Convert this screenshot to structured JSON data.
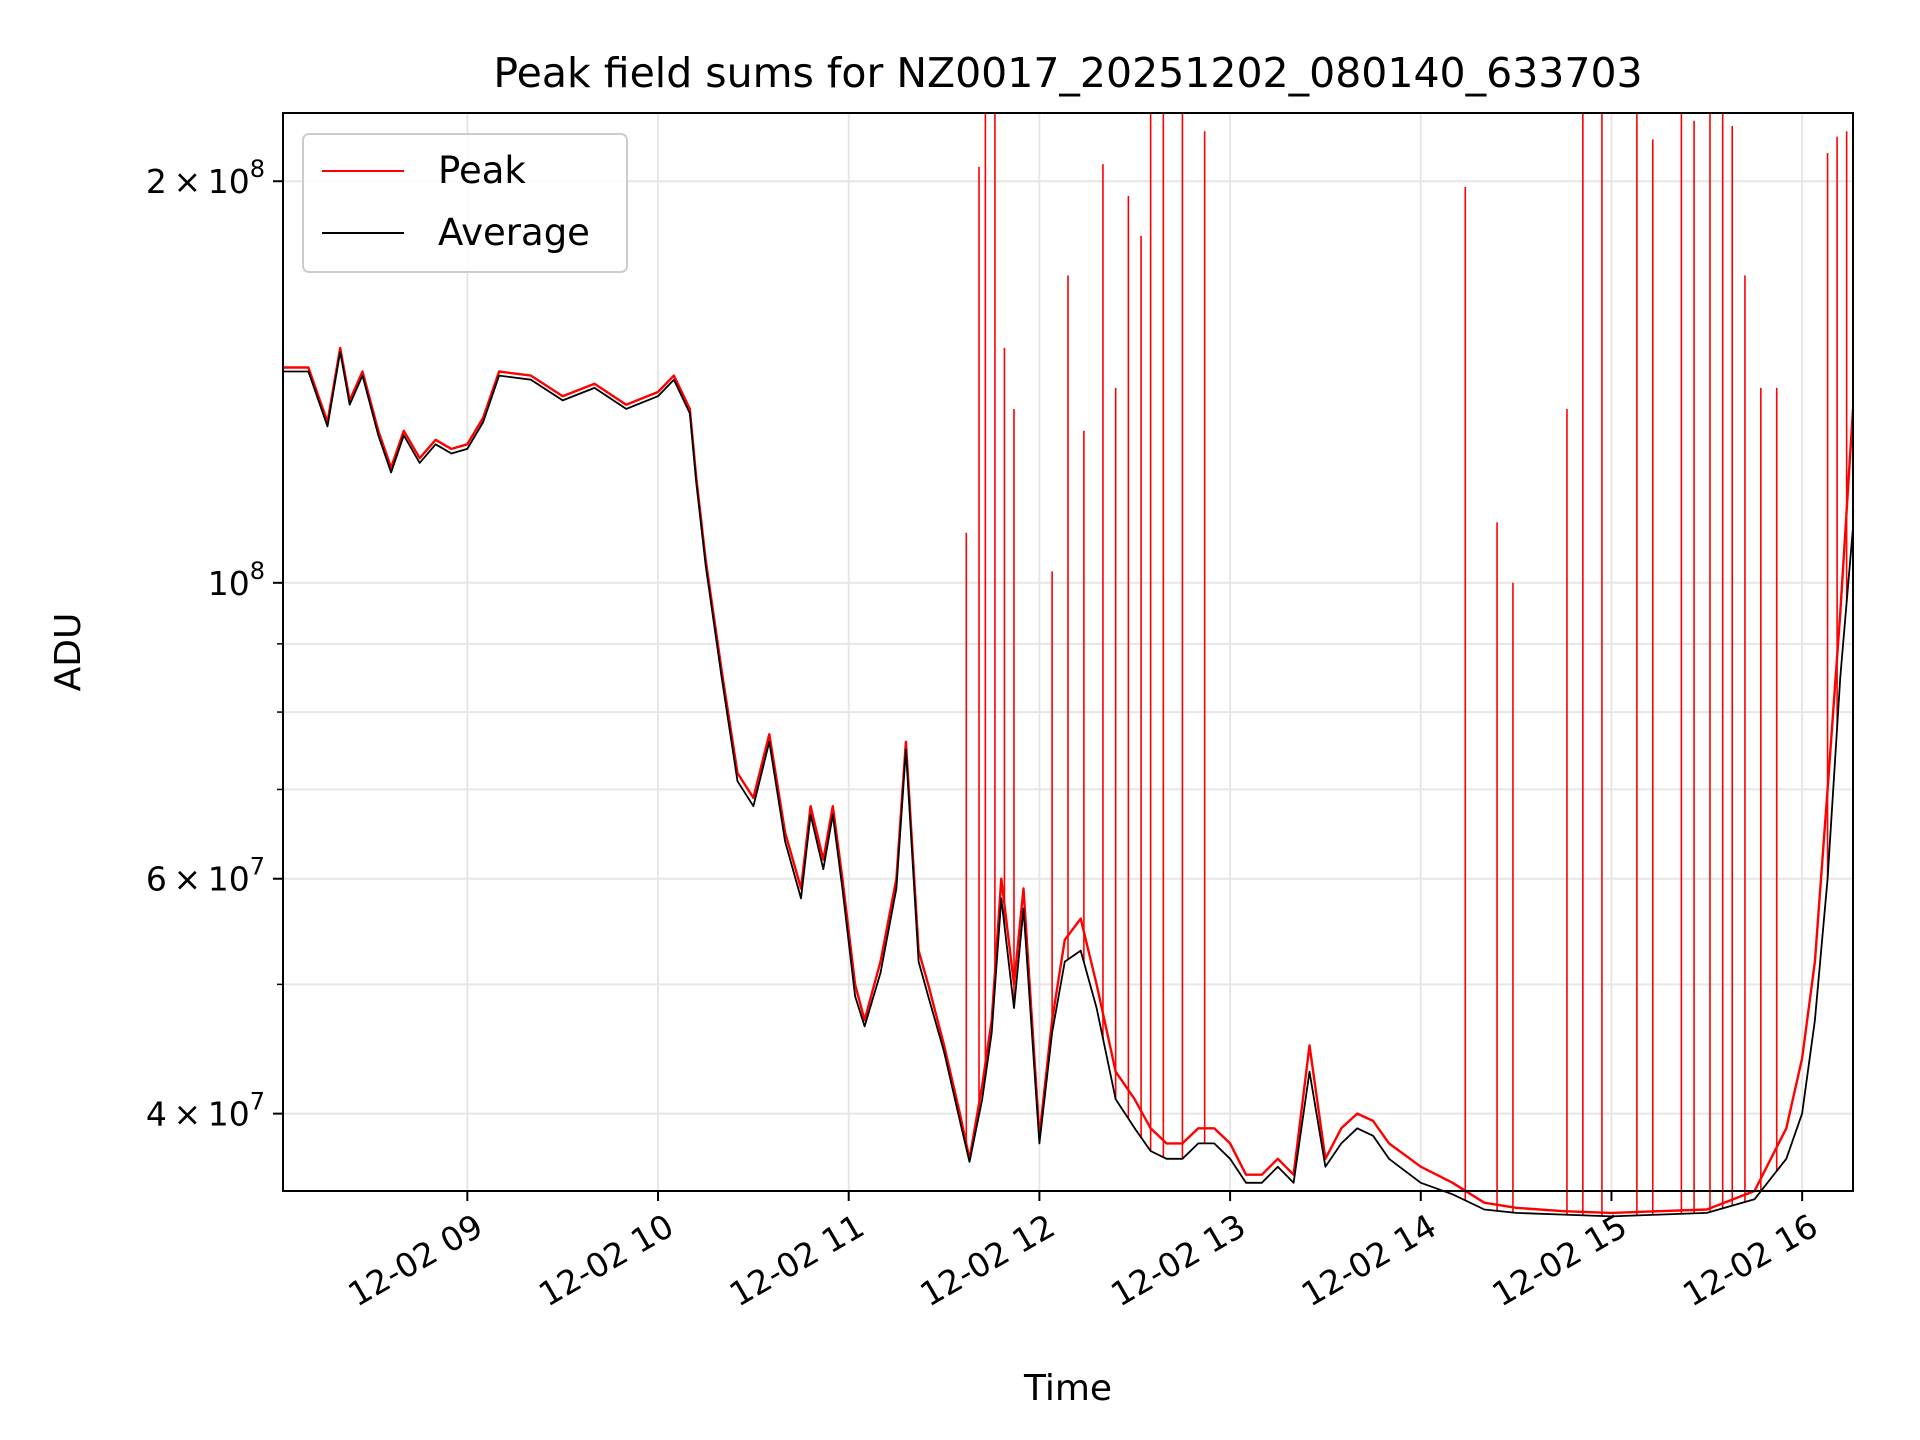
{
  "chart_data": {
    "type": "line",
    "title": "Peak field sums for NZ0017_20251202_080140_633703",
    "xlabel": "Time",
    "ylabel": "ADU",
    "yscale": "log",
    "grid": true,
    "legend_position": "top-left",
    "xlim": [
      "12-02 08:02",
      "12-02 16:16"
    ],
    "ylim": [
      35000000,
      225000000
    ],
    "x_ticks": [
      "12-02 09",
      "12-02 10",
      "12-02 11",
      "12-02 12",
      "12-02 13",
      "12-02 14",
      "12-02 15",
      "12-02 16"
    ],
    "y_ticks": [
      {
        "value": 40000000,
        "mantissa": "4",
        "exp": "7"
      },
      {
        "value": 60000000,
        "mantissa": "6",
        "exp": "7"
      },
      {
        "value": 100000000,
        "mantissa": "",
        "exp": "8"
      },
      {
        "value": 200000000,
        "mantissa": "2",
        "exp": "8"
      }
    ],
    "series": [
      {
        "name": "Peak",
        "color": "#ff0000",
        "x": [
          "12-02 08:02",
          "12-02 08:10",
          "12-02 08:16",
          "12-02 08:20",
          "12-02 08:23",
          "12-02 08:27",
          "12-02 08:32",
          "12-02 08:36",
          "12-02 08:40",
          "12-02 08:45",
          "12-02 08:50",
          "12-02 08:55",
          "12-02 09:00",
          "12-02 09:05",
          "12-02 09:10",
          "12-02 09:20",
          "12-02 09:30",
          "12-02 09:40",
          "12-02 09:50",
          "12-02 10:00",
          "12-02 10:05",
          "12-02 10:10",
          "12-02 10:12",
          "12-02 10:15",
          "12-02 10:20",
          "12-02 10:25",
          "12-02 10:30",
          "12-02 10:35",
          "12-02 10:40",
          "12-02 10:45",
          "12-02 10:48",
          "12-02 10:52",
          "12-02 10:55",
          "12-02 10:58",
          "12-02 11:02",
          "12-02 11:05",
          "12-02 11:10",
          "12-02 11:15",
          "12-02 11:18",
          "12-02 11:22",
          "12-02 11:25",
          "12-02 11:30",
          "12-02 11:35",
          "12-02 11:38",
          "12-02 11:42",
          "12-02 11:45",
          "12-02 11:48",
          "12-02 11:52",
          "12-02 11:55",
          "12-02 12:00",
          "12-02 12:04",
          "12-02 12:08",
          "12-02 12:13",
          "12-02 12:18",
          "12-02 12:24",
          "12-02 12:30",
          "12-02 12:35",
          "12-02 12:40",
          "12-02 12:45",
          "12-02 12:50",
          "12-02 12:55",
          "12-02 13:00",
          "12-02 13:05",
          "12-02 13:10",
          "12-02 13:15",
          "12-02 13:20",
          "12-02 13:25",
          "12-02 13:30",
          "12-02 13:35",
          "12-02 13:40",
          "12-02 13:45",
          "12-02 13:50",
          "12-02 14:00",
          "12-02 14:10",
          "12-02 14:20",
          "12-02 14:30",
          "12-02 14:45",
          "12-02 15:00",
          "12-02 15:15",
          "12-02 15:30",
          "12-02 15:45",
          "12-02 15:55",
          "12-02 16:00",
          "12-02 16:04",
          "12-02 16:08",
          "12-02 16:12",
          "12-02 16:16"
        ],
        "y": [
          145000000,
          145000000,
          132000000,
          150000000,
          137000000,
          144000000,
          130000000,
          122000000,
          130000000,
          124000000,
          128000000,
          126000000,
          127000000,
          133000000,
          144000000,
          143000000,
          138000000,
          141000000,
          136000000,
          139000000,
          143000000,
          135000000,
          120000000,
          104000000,
          86000000,
          72000000,
          69000000,
          77000000,
          65000000,
          59000000,
          68000000,
          62000000,
          68000000,
          60000000,
          50000000,
          47000000,
          52000000,
          60000000,
          76000000,
          53000000,
          50000000,
          45000000,
          40000000,
          37000000,
          42000000,
          47000000,
          60000000,
          50000000,
          59000000,
          38500000,
          47000000,
          54000000,
          56000000,
          50000000,
          43000000,
          41000000,
          39000000,
          38000000,
          38000000,
          39000000,
          39000000,
          38000000,
          36000000,
          36000000,
          37000000,
          36000000,
          45000000,
          37000000,
          39000000,
          40000000,
          39500000,
          38000000,
          36500000,
          35500000,
          34300000,
          34000000,
          33800000,
          33700000,
          33800000,
          33900000,
          35000000,
          39000000,
          44000000,
          52000000,
          70000000,
          95000000,
          135000000
        ],
        "spikes": [
          {
            "x": "12-02 11:37",
            "y": 109000000
          },
          {
            "x": "12-02 11:41",
            "y": 205000000
          },
          {
            "x": "12-02 11:43",
            "y": 225000000
          },
          {
            "x": "12-02 11:46",
            "y": 225000000
          },
          {
            "x": "12-02 11:49",
            "y": 150000000
          },
          {
            "x": "12-02 11:52",
            "y": 135000000
          },
          {
            "x": "12-02 12:04",
            "y": 102000000
          },
          {
            "x": "12-02 12:09",
            "y": 170000000
          },
          {
            "x": "12-02 12:14",
            "y": 130000000
          },
          {
            "x": "12-02 12:20",
            "y": 206000000
          },
          {
            "x": "12-02 12:24",
            "y": 140000000
          },
          {
            "x": "12-02 12:28",
            "y": 195000000
          },
          {
            "x": "12-02 12:32",
            "y": 182000000
          },
          {
            "x": "12-02 12:35",
            "y": 225000000
          },
          {
            "x": "12-02 12:39",
            "y": 225000000
          },
          {
            "x": "12-02 12:45",
            "y": 225000000
          },
          {
            "x": "12-02 12:52",
            "y": 218000000
          },
          {
            "x": "12-02 14:14",
            "y": 198000000
          },
          {
            "x": "12-02 14:24",
            "y": 111000000
          },
          {
            "x": "12-02 14:29",
            "y": 100000000
          },
          {
            "x": "12-02 14:46",
            "y": 135000000
          },
          {
            "x": "12-02 14:51",
            "y": 225000000
          },
          {
            "x": "12-02 14:57",
            "y": 225000000
          },
          {
            "x": "12-02 15:08",
            "y": 225000000
          },
          {
            "x": "12-02 15:13",
            "y": 215000000
          },
          {
            "x": "12-02 15:22",
            "y": 225000000
          },
          {
            "x": "12-02 15:26",
            "y": 222000000
          },
          {
            "x": "12-02 15:31",
            "y": 225000000
          },
          {
            "x": "12-02 15:35",
            "y": 225000000
          },
          {
            "x": "12-02 15:38",
            "y": 220000000
          },
          {
            "x": "12-02 15:42",
            "y": 170000000
          },
          {
            "x": "12-02 15:47",
            "y": 140000000
          },
          {
            "x": "12-02 15:52",
            "y": 140000000
          },
          {
            "x": "12-02 16:08",
            "y": 210000000
          },
          {
            "x": "12-02 16:11",
            "y": 216000000
          },
          {
            "x": "12-02 16:14",
            "y": 218000000
          }
        ]
      },
      {
        "name": "Average",
        "color": "#000000",
        "x": [
          "12-02 08:02",
          "12-02 08:10",
          "12-02 08:16",
          "12-02 08:20",
          "12-02 08:23",
          "12-02 08:27",
          "12-02 08:32",
          "12-02 08:36",
          "12-02 08:40",
          "12-02 08:45",
          "12-02 08:50",
          "12-02 08:55",
          "12-02 09:00",
          "12-02 09:05",
          "12-02 09:10",
          "12-02 09:20",
          "12-02 09:30",
          "12-02 09:40",
          "12-02 09:50",
          "12-02 10:00",
          "12-02 10:05",
          "12-02 10:10",
          "12-02 10:12",
          "12-02 10:15",
          "12-02 10:20",
          "12-02 10:25",
          "12-02 10:30",
          "12-02 10:35",
          "12-02 10:40",
          "12-02 10:45",
          "12-02 10:48",
          "12-02 10:52",
          "12-02 10:55",
          "12-02 10:58",
          "12-02 11:02",
          "12-02 11:05",
          "12-02 11:10",
          "12-02 11:15",
          "12-02 11:18",
          "12-02 11:22",
          "12-02 11:25",
          "12-02 11:30",
          "12-02 11:35",
          "12-02 11:38",
          "12-02 11:42",
          "12-02 11:45",
          "12-02 11:48",
          "12-02 11:52",
          "12-02 11:55",
          "12-02 12:00",
          "12-02 12:04",
          "12-02 12:08",
          "12-02 12:13",
          "12-02 12:18",
          "12-02 12:24",
          "12-02 12:30",
          "12-02 12:35",
          "12-02 12:40",
          "12-02 12:45",
          "12-02 12:50",
          "12-02 12:55",
          "12-02 13:00",
          "12-02 13:05",
          "12-02 13:10",
          "12-02 13:15",
          "12-02 13:20",
          "12-02 13:25",
          "12-02 13:30",
          "12-02 13:35",
          "12-02 13:40",
          "12-02 13:45",
          "12-02 13:50",
          "12-02 14:00",
          "12-02 14:10",
          "12-02 14:20",
          "12-02 14:30",
          "12-02 14:45",
          "12-02 15:00",
          "12-02 15:15",
          "12-02 15:30",
          "12-02 15:45",
          "12-02 15:55",
          "12-02 16:00",
          "12-02 16:04",
          "12-02 16:08",
          "12-02 16:12",
          "12-02 16:16"
        ],
        "y": [
          144000000,
          144000000,
          131000000,
          149000000,
          136000000,
          143000000,
          129000000,
          121000000,
          129000000,
          123000000,
          127000000,
          125000000,
          126000000,
          132000000,
          143000000,
          142000000,
          137000000,
          140000000,
          135000000,
          138000000,
          142000000,
          134000000,
          119000000,
          103000000,
          85000000,
          71000000,
          68000000,
          76000000,
          64000000,
          58000000,
          67000000,
          61000000,
          67000000,
          59000000,
          49000000,
          46500000,
          51000000,
          59000000,
          75000000,
          52000000,
          49000000,
          44500000,
          39500000,
          36800000,
          41000000,
          46000000,
          58000000,
          48000000,
          57000000,
          38000000,
          46000000,
          52000000,
          53000000,
          48000000,
          41000000,
          39000000,
          37500000,
          37000000,
          37000000,
          38000000,
          38000000,
          37000000,
          35500000,
          35500000,
          36500000,
          35500000,
          43000000,
          36500000,
          38000000,
          39000000,
          38500000,
          37000000,
          35500000,
          34800000,
          33900000,
          33700000,
          33600000,
          33500000,
          33600000,
          33700000,
          34500000,
          37000000,
          40000000,
          47000000,
          60000000,
          85000000,
          110000000
        ]
      }
    ]
  }
}
